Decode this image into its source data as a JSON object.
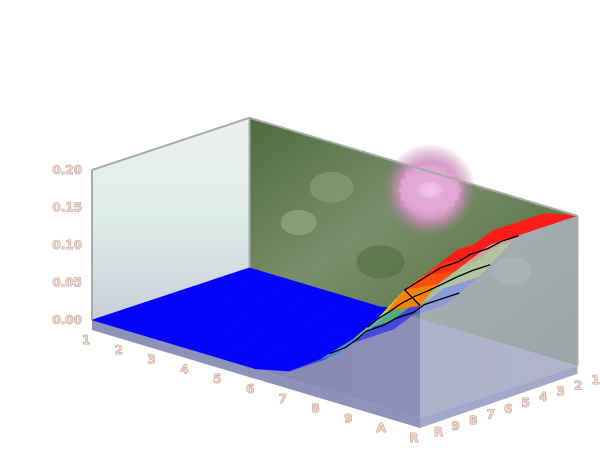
{
  "chart_data": {
    "type": "surface3d",
    "title": "",
    "colors": {
      "low": "#0000ff",
      "cyan": "#00e5ff",
      "green": "#22cc22",
      "yellow": "#e8f000",
      "orange": "#ff8000",
      "high": "#ff1a1a",
      "base_floor": "#7a7fae",
      "tick_label": "#f3d6c9",
      "contour": "#000000"
    },
    "axes": {
      "z_ticks": [
        "0.00",
        "0.05",
        "0.10",
        "0.15",
        "0.20"
      ],
      "z_range": [
        0,
        0.2
      ],
      "x_ticks": [
        "1",
        "2",
        "3",
        "4",
        "5",
        "6",
        "7",
        "8",
        "9",
        "A",
        "R"
      ],
      "y_ticks": [
        "1",
        "2",
        "3",
        "4",
        "5",
        "6",
        "7",
        "8",
        "9",
        "R"
      ]
    },
    "surface": {
      "x_categories": [
        "1",
        "2",
        "3",
        "4",
        "5",
        "6",
        "7",
        "8",
        "9",
        "A",
        "R"
      ],
      "y_categories": [
        "1",
        "2",
        "3",
        "4",
        "5",
        "6",
        "7",
        "8",
        "9",
        "R"
      ],
      "z": [
        [
          0.0,
          0.0,
          0.0,
          0.0,
          0.0,
          0.0,
          0.01,
          0.04,
          0.08,
          0.13,
          0.15
        ],
        [
          0.0,
          0.0,
          0.0,
          0.0,
          0.0,
          0.0,
          0.01,
          0.04,
          0.09,
          0.15,
          0.17
        ],
        [
          0.0,
          0.0,
          0.0,
          0.0,
          0.0,
          0.0,
          0.01,
          0.05,
          0.1,
          0.16,
          0.18
        ],
        [
          0.0,
          0.0,
          0.0,
          0.0,
          0.0,
          0.0,
          0.02,
          0.06,
          0.11,
          0.17,
          0.19
        ],
        [
          0.0,
          0.0,
          0.0,
          0.0,
          0.0,
          0.0,
          0.02,
          0.06,
          0.12,
          0.18,
          0.2
        ],
        [
          0.0,
          0.0,
          0.0,
          0.0,
          0.0,
          0.0,
          0.02,
          0.07,
          0.12,
          0.18,
          0.2
        ],
        [
          0.0,
          0.0,
          0.0,
          0.0,
          0.0,
          0.01,
          0.02,
          0.07,
          0.13,
          0.19,
          0.2
        ],
        [
          0.0,
          0.0,
          0.0,
          0.0,
          0.0,
          0.01,
          0.03,
          0.08,
          0.13,
          0.19,
          0.2
        ],
        [
          0.0,
          0.0,
          0.0,
          0.0,
          0.0,
          0.01,
          0.03,
          0.08,
          0.14,
          0.19,
          0.2
        ],
        [
          0.0,
          0.0,
          0.0,
          0.0,
          0.0,
          0.01,
          0.03,
          0.08,
          0.14,
          0.19,
          0.2
        ]
      ],
      "contour_levels": [
        0.05,
        0.1,
        0.15
      ]
    },
    "walls": {
      "back_wall_image": "clover-flower-photo",
      "left_wall": "translucent-gray",
      "floor": "slate-blue"
    },
    "grid": false,
    "legend": "none"
  }
}
